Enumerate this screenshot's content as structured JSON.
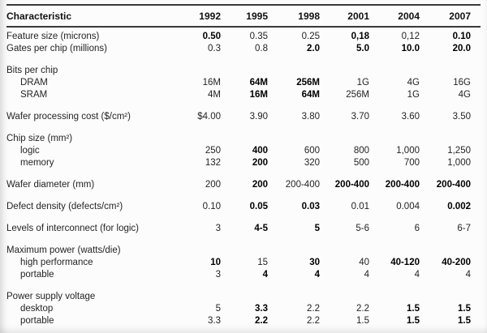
{
  "table": {
    "columns": [
      "Characteristic",
      "1992",
      "1995",
      "1998",
      "2001",
      "2004",
      "2007"
    ],
    "rows": [
      {
        "label": "Feature size (microns)",
        "indent": false,
        "group": false,
        "gap": false,
        "cells": [
          "0.50",
          "0.35",
          "0.25",
          "0,18",
          "0,12",
          "0.10"
        ],
        "bold": [
          0,
          3,
          5
        ]
      },
      {
        "label": "Gates per chip (millions)",
        "indent": false,
        "group": false,
        "gap": false,
        "cells": [
          "0.3",
          "0.8",
          "2.0",
          "5.0",
          "10.0",
          "20.0"
        ],
        "bold": [
          2,
          3,
          4,
          5
        ]
      },
      {
        "label": "Bits per chip",
        "indent": false,
        "group": true,
        "gap": true,
        "cells": [
          "",
          "",
          "",
          "",
          "",
          ""
        ],
        "bold": []
      },
      {
        "label": "DRAM",
        "indent": true,
        "group": false,
        "gap": false,
        "cells": [
          "16M",
          "64M",
          "256M",
          "1G",
          "4G",
          "16G"
        ],
        "bold": [
          1,
          2
        ]
      },
      {
        "label": "SRAM",
        "indent": true,
        "group": false,
        "gap": false,
        "cells": [
          "4M",
          "16M",
          "64M",
          "256M",
          "1G",
          "4G"
        ],
        "bold": [
          1,
          2
        ]
      },
      {
        "label": "Wafer processing cost ($/cm²)",
        "indent": false,
        "group": false,
        "gap": true,
        "cells": [
          "$4.00",
          "3.90",
          "3.80",
          "3.70",
          "3.60",
          "3.50"
        ],
        "bold": []
      },
      {
        "label": "Chip size (mm²)",
        "indent": false,
        "group": true,
        "gap": true,
        "cells": [
          "",
          "",
          "",
          "",
          "",
          ""
        ],
        "bold": []
      },
      {
        "label": "logic",
        "indent": true,
        "group": false,
        "gap": false,
        "cells": [
          "250",
          "400",
          "600",
          "800",
          "1,000",
          "1,250"
        ],
        "bold": [
          1
        ]
      },
      {
        "label": "memory",
        "indent": true,
        "group": false,
        "gap": false,
        "cells": [
          "132",
          "200",
          "320",
          "500",
          "700",
          "1,000"
        ],
        "bold": [
          1
        ]
      },
      {
        "label": "Wafer diameter (mm)",
        "indent": false,
        "group": false,
        "gap": true,
        "cells": [
          "200",
          "200",
          "200-400",
          "200-400",
          "200-400",
          "200-400"
        ],
        "bold": [
          1,
          3,
          4,
          5
        ]
      },
      {
        "label": "Defect density (defects/cm²)",
        "indent": false,
        "group": false,
        "gap": true,
        "cells": [
          "0.10",
          "0.05",
          "0.03",
          "0.01",
          "0.004",
          "0.002"
        ],
        "bold": [
          1,
          2,
          5
        ]
      },
      {
        "label": "Levels of interconnect (for logic)",
        "indent": false,
        "group": false,
        "gap": true,
        "cells": [
          "3",
          "4-5",
          "5",
          "5-6",
          "6",
          "6-7"
        ],
        "bold": [
          1,
          2
        ]
      },
      {
        "label": "Maximum power (watts/die)",
        "indent": false,
        "group": true,
        "gap": true,
        "cells": [
          "",
          "",
          "",
          "",
          "",
          ""
        ],
        "bold": []
      },
      {
        "label": "high performance",
        "indent": true,
        "group": false,
        "gap": false,
        "cells": [
          "10",
          "15",
          "30",
          "40",
          "40-120",
          "40-200"
        ],
        "bold": [
          0,
          2,
          4,
          5
        ]
      },
      {
        "label": "portable",
        "indent": true,
        "group": false,
        "gap": false,
        "cells": [
          "3",
          "4",
          "4",
          "4",
          "4",
          "4"
        ],
        "bold": [
          1,
          2
        ]
      },
      {
        "label": "Power supply voltage",
        "indent": false,
        "group": true,
        "gap": true,
        "cells": [
          "",
          "",
          "",
          "",
          "",
          ""
        ],
        "bold": []
      },
      {
        "label": "desktop",
        "indent": true,
        "group": false,
        "gap": false,
        "cells": [
          "5",
          "3.3",
          "2.2",
          "2.2",
          "1.5",
          "1.5"
        ],
        "bold": [
          1,
          4,
          5
        ]
      },
      {
        "label": "portable",
        "indent": true,
        "group": false,
        "gap": false,
        "cells": [
          "3.3",
          "2.2",
          "2.2",
          "1.5",
          "1.5",
          "1.5"
        ],
        "bold": [
          1,
          4,
          5
        ]
      }
    ]
  }
}
